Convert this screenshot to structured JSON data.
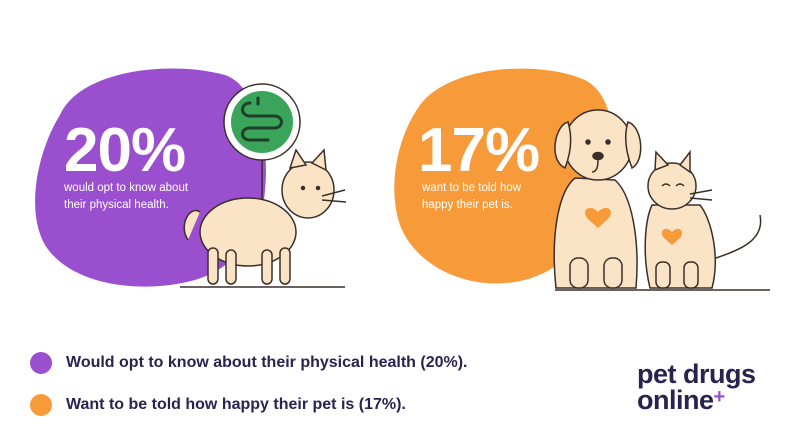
{
  "colors": {
    "purple": "#9a4fcf",
    "orange": "#f79b3a",
    "cream": "#fbe3c6",
    "outline": "#3b2f2a",
    "gut_green": "#3aa55a",
    "text_dark": "#2a2350"
  },
  "chart_data": {
    "type": "bar",
    "categories": [
      "would opt to know about their physical health.",
      "want to be told how happy their pet is."
    ],
    "values": [
      20,
      17
    ],
    "value_labels": [
      "20%",
      "17%"
    ],
    "title": "",
    "xlabel": "",
    "ylabel": "",
    "legend": [
      {
        "label": "Would opt to know about their physical health (20%).",
        "color": "#9a4fcf"
      },
      {
        "label": "Want to be told how happy their pet is (17%).",
        "color": "#f79b3a"
      }
    ]
  },
  "panels": [
    {
      "value": "20%",
      "caption_1": "would opt to know about",
      "caption_2": "their physical health.",
      "icons": [
        "cat-icon",
        "intestine-icon"
      ]
    },
    {
      "value": "17%",
      "caption_1": "want to be told how",
      "caption_2": "happy their pet is.",
      "icons": [
        "dog-icon",
        "cat-icon",
        "heart-icon"
      ]
    }
  ],
  "logo": {
    "line1": "pet drugs",
    "line2": "online",
    "plus": "+"
  }
}
